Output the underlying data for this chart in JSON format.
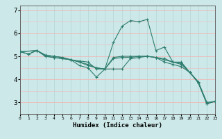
{
  "title": "",
  "xlabel": "Humidex (Indice chaleur)",
  "ylabel": "",
  "xlim": [
    0,
    23
  ],
  "ylim": [
    2.5,
    7.2
  ],
  "background_color": "#cce8e8",
  "grid_color_v": "#b8d8d8",
  "grid_color_h": "#f0b8b8",
  "line_color": "#2e7d6e",
  "series": [
    {
      "x": [
        0,
        1,
        2,
        3,
        4,
        5,
        6,
        7,
        8,
        9,
        10,
        11,
        12,
        13,
        14,
        15,
        16,
        17,
        18,
        19,
        20,
        21,
        22,
        23
      ],
      "y": [
        5.2,
        5.1,
        5.25,
        5.05,
        5.0,
        4.95,
        4.85,
        4.6,
        4.5,
        4.1,
        4.45,
        5.6,
        6.3,
        6.55,
        6.5,
        6.6,
        5.25,
        5.4,
        4.75,
        4.75,
        4.3,
        3.9,
        3.0,
        3.05
      ]
    },
    {
      "x": [
        0,
        1,
        2,
        3,
        4,
        5,
        6,
        7,
        8,
        9,
        10,
        11,
        12,
        13,
        14,
        15,
        16,
        17,
        18,
        19,
        20,
        21,
        22,
        23
      ],
      "y": [
        5.2,
        5.1,
        5.25,
        5.05,
        5.0,
        4.95,
        4.85,
        4.8,
        4.75,
        4.45,
        4.45,
        4.95,
        5.0,
        5.0,
        5.0,
        5.0,
        4.95,
        4.9,
        4.75,
        4.7,
        4.3,
        3.85,
        2.95,
        3.05
      ]
    },
    {
      "x": [
        0,
        2,
        3,
        4,
        5,
        6,
        7,
        8,
        9,
        10,
        11,
        12,
        13,
        14,
        15,
        16,
        17,
        18,
        19,
        20,
        21,
        22,
        23
      ],
      "y": [
        5.2,
        5.25,
        5.0,
        4.95,
        4.9,
        4.85,
        4.75,
        4.65,
        4.5,
        4.45,
        4.9,
        4.95,
        4.95,
        5.0,
        5.0,
        4.95,
        4.85,
        4.75,
        4.65,
        4.3,
        3.85,
        2.95,
        3.05
      ]
    },
    {
      "x": [
        0,
        2,
        3,
        4,
        5,
        6,
        7,
        8,
        9,
        10,
        11,
        12,
        13,
        14,
        15,
        16,
        17,
        18,
        19,
        20,
        21,
        22,
        23
      ],
      "y": [
        5.2,
        5.25,
        5.0,
        4.95,
        4.9,
        4.85,
        4.75,
        4.6,
        4.5,
        4.45,
        4.45,
        4.45,
        4.9,
        4.95,
        5.0,
        4.95,
        4.75,
        4.65,
        4.55,
        4.3,
        3.85,
        2.95,
        3.05
      ]
    }
  ],
  "xtick_labels": [
    "0",
    "1",
    "2",
    "3",
    "4",
    "5",
    "6",
    "7",
    "8",
    "9",
    "10",
    "11",
    "12",
    "13",
    "14",
    "15",
    "16",
    "17",
    "18",
    "19",
    "20",
    "21",
    "22",
    "23"
  ],
  "ytick_values": [
    3,
    4,
    5,
    6,
    7
  ],
  "marker": "+"
}
